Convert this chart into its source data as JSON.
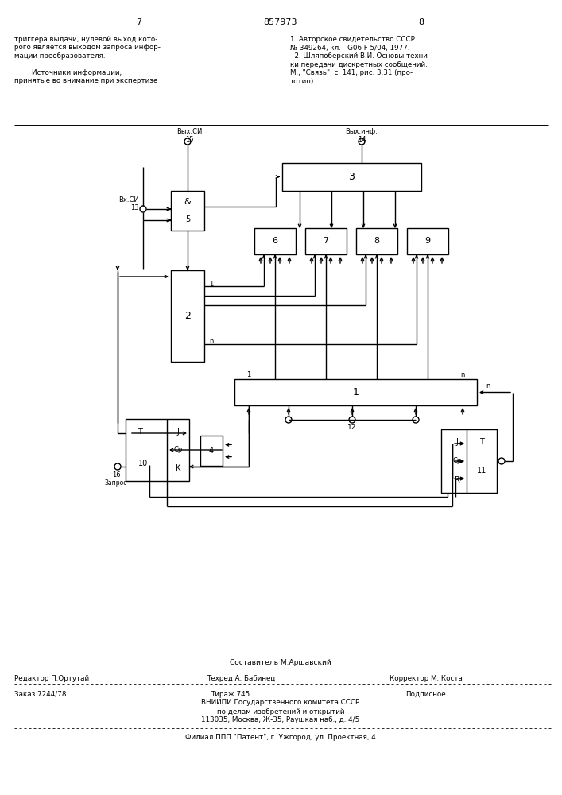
{
  "bg_color": "#ffffff",
  "line_color": "#000000",
  "text_color": "#000000",
  "page_left": "7",
  "title_number": "857973",
  "page_right": "8",
  "header_left_lines": [
    "триггера выдачи, нулевой выход кото-",
    "рого является выходом запроса инфор-",
    "мации преобразователя.",
    "",
    "        Источники информации,",
    "принятые во внимание при экспертизе"
  ],
  "header_right_lines": [
    "1. Авторское свидетельство СССР",
    "№ 349264, кл.   G06 F 5/04, 1977.",
    "  2. Шляпоберский В.И. Основы техни-",
    "ки передачи дискретных сообщений.",
    "М., \"Связь\", с. 141, рис. 3.31 (про-",
    "тотип)."
  ],
  "footer_composer": "Составитель М.Аршавский",
  "footer_editor": "Редактор П.Ортутай",
  "footer_tech": "Техред А. Бабинец",
  "footer_corrector": "Корректор М. Коста",
  "footer_order": "Заказ 7244/78",
  "footer_edition": "Тираж 745",
  "footer_signed": "Подписное",
  "footer_org1": "ВНИИПИ Государственного комитета СССР",
  "footer_org2": "по делам изобретений и открытий",
  "footer_org3": "113035, Москва, Ж-35, Раушкая наб., д. 4/5",
  "footer_branch": "Филиал ППП \"Патент\", г. Ужгород, ул. Проектная, 4"
}
